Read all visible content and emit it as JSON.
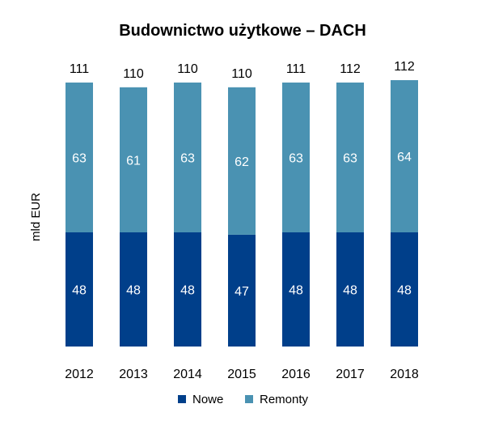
{
  "chart_data": {
    "type": "bar",
    "stacked": true,
    "title": "Budownictwo użytkowe – DACH",
    "xlabel": "",
    "ylabel": "mld EUR",
    "categories": [
      "2012",
      "2013",
      "2014",
      "2015",
      "2016",
      "2017",
      "2018"
    ],
    "series": [
      {
        "name": "Nowe",
        "color": "#003f8a",
        "values": [
          48,
          48,
          48,
          47,
          48,
          48,
          48
        ]
      },
      {
        "name": "Remonty",
        "color": "#4a92b2",
        "values": [
          63,
          61,
          63,
          62,
          63,
          63,
          64
        ]
      }
    ],
    "totals": [
      111,
      110,
      110,
      110,
      111,
      112,
      112
    ],
    "ylim": [
      0,
      112
    ],
    "grid": false,
    "legend_position": "bottom-center"
  }
}
